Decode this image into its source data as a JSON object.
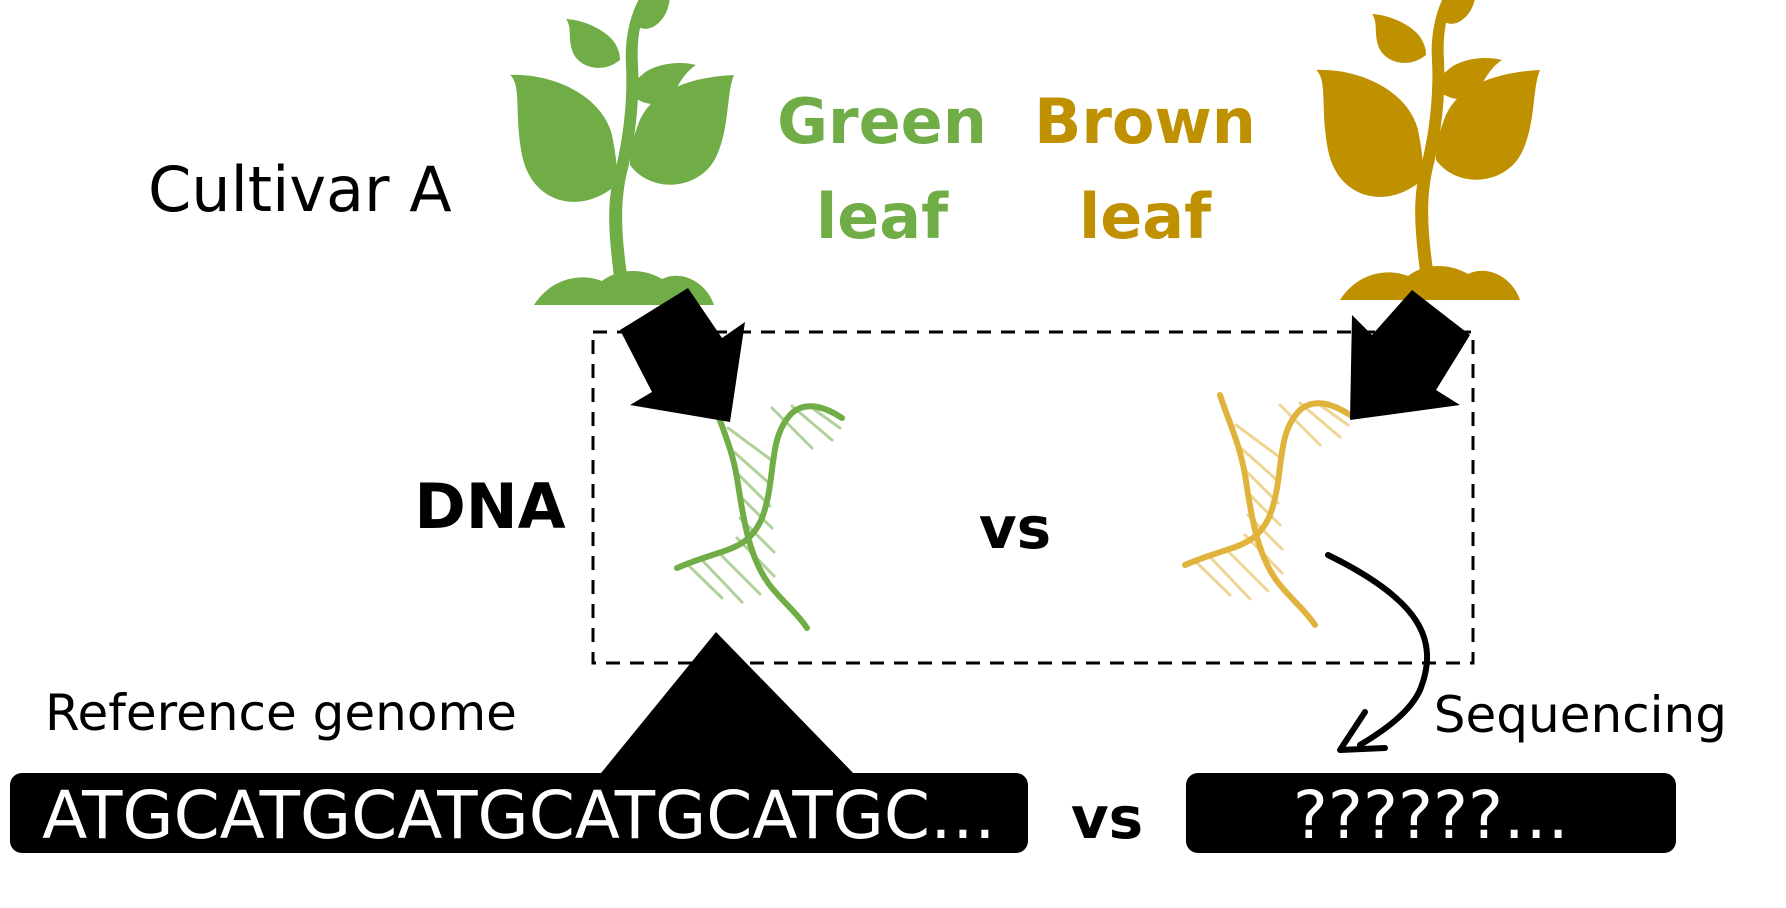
{
  "labels": {
    "cultivar": "Cultivar A",
    "green_line1": "Green",
    "green_line2": "leaf",
    "brown_line1": "Brown",
    "brown_line2": "leaf",
    "dna": "DNA",
    "vs_top": "vs",
    "reference_genome": "Reference genome",
    "sequencing": "Sequencing",
    "reference_sequence": "ATGCATGCATGCATGCATGC…",
    "vs_bottom": "vs",
    "unknown_sequence": "??????…"
  },
  "colors": {
    "green": "#70ad47",
    "brown": "#bf9000",
    "dna_brown": "#e0b43c",
    "black": "#000000"
  },
  "icons": {
    "green_plant": "sprout-icon",
    "brown_plant": "sprout-icon",
    "green_dna": "dna-helix-icon",
    "brown_dna": "dna-helix-icon"
  }
}
